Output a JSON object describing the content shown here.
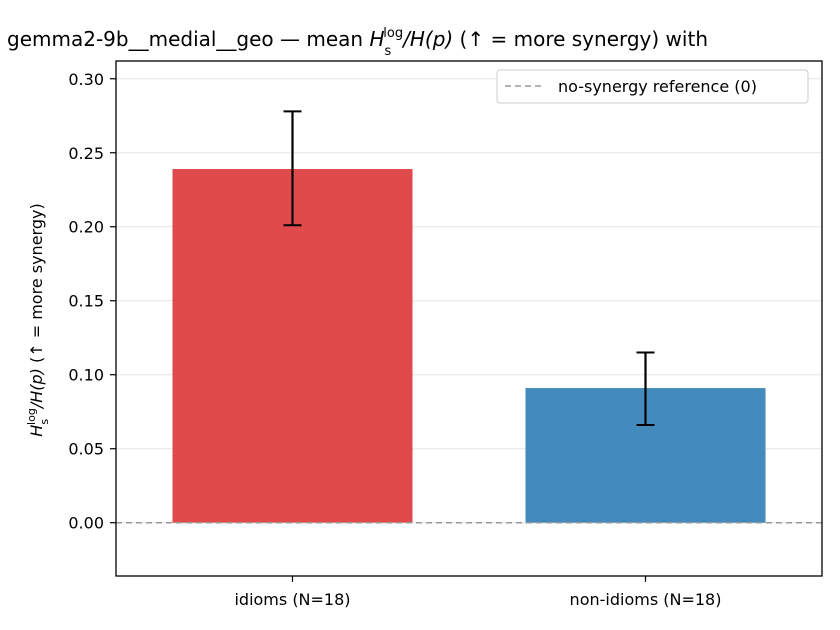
{
  "chart_data": {
    "type": "bar",
    "title_model": "gemma2-9b__medial__geo — mean ",
    "title_rest": " (↑ = more synergy) with",
    "ylabel_suffix": "  (↑ = more synergy)",
    "metric": {
      "main": "H",
      "sub": "s",
      "sup": "log",
      "denominator": "/H(p)"
    },
    "categories": [
      "idioms (N=18)",
      "non-idioms (N=18)"
    ],
    "values": [
      0.239,
      0.091
    ],
    "errors": [
      [
        0.201,
        0.278
      ],
      [
        0.066,
        0.115
      ]
    ],
    "colors": [
      "#e04a4a",
      "#438bbd"
    ],
    "ylim": [
      -0.036,
      0.312
    ],
    "yticks": [
      "0.00",
      "0.05",
      "0.10",
      "0.15",
      "0.20",
      "0.25",
      "0.30"
    ],
    "reference_line": {
      "value": 0,
      "label": "no-synergy reference (0)",
      "color": "#999999"
    },
    "grid": "horizontal",
    "legend_position": "top-right"
  }
}
